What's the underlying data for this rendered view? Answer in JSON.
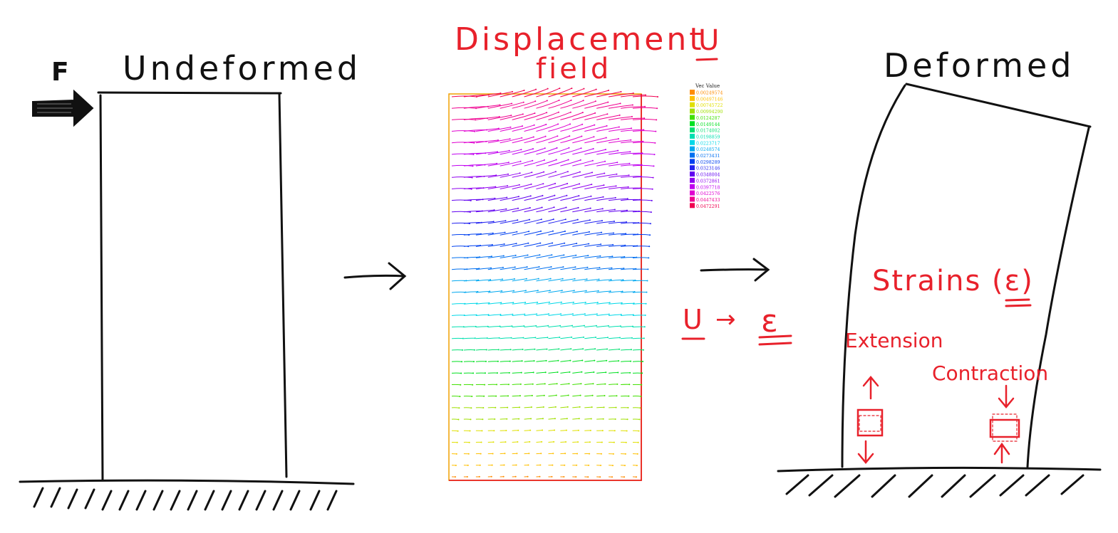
{
  "labels": {
    "force": "F",
    "undeformed": "Undeformed",
    "displacement_line1": "Displacement",
    "displacement_symbol": "U",
    "displacement_line2": "field",
    "deformed": "Deformed",
    "strains": "Strains (ε)",
    "relation_left": "U",
    "relation_arrow": "→",
    "relation_right": "ε",
    "extension": "Extension",
    "contraction": "Contraction"
  },
  "legend": {
    "title": "Vec Value",
    "entries": [
      {
        "value": "0.00249574",
        "color": "#ff8c00"
      },
      {
        "value": "0.00497146",
        "color": "#ffc000"
      },
      {
        "value": "0.00745722",
        "color": "#e0e000"
      },
      {
        "value": "0.00994290",
        "color": "#a0e000"
      },
      {
        "value": "0.0124287",
        "color": "#40e000"
      },
      {
        "value": "0.0149144",
        "color": "#00e020"
      },
      {
        "value": "0.0174002",
        "color": "#00e070"
      },
      {
        "value": "0.0198859",
        "color": "#00e0b0"
      },
      {
        "value": "0.0223717",
        "color": "#00d8e8"
      },
      {
        "value": "0.0248574",
        "color": "#00a8f0"
      },
      {
        "value": "0.0273431",
        "color": "#0070f0"
      },
      {
        "value": "0.0298289",
        "color": "#0040f0"
      },
      {
        "value": "0.0323146",
        "color": "#2020f0"
      },
      {
        "value": "0.0348004",
        "color": "#6000f0"
      },
      {
        "value": "0.0372861",
        "color": "#9000f0"
      },
      {
        "value": "0.0397718",
        "color": "#c000f0"
      },
      {
        "value": "0.0422576",
        "color": "#e000d0"
      },
      {
        "value": "0.0447433",
        "color": "#f00090"
      },
      {
        "value": "0.0472291",
        "color": "#f00050"
      }
    ]
  },
  "colors": {
    "ink_black": "#111111",
    "ink_red": "#e8212b",
    "field_border_orange": "#f0a000",
    "field_border_red": "#e82020"
  }
}
